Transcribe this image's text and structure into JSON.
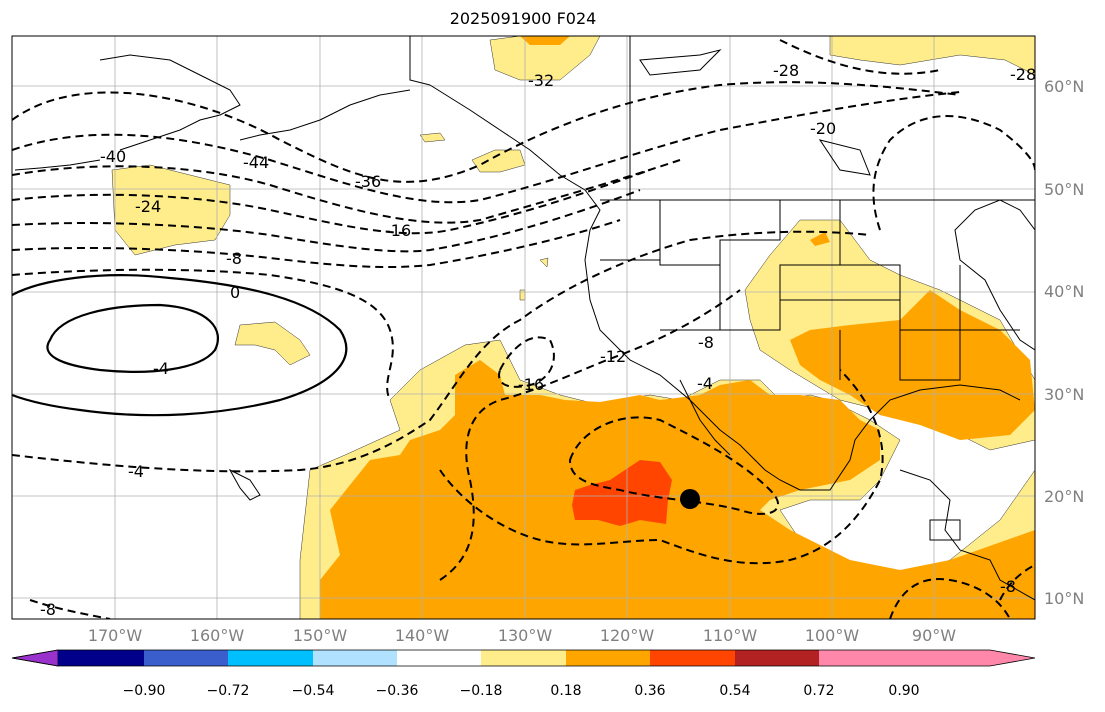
{
  "title": "2025091900 F024",
  "map": {
    "lat_labels": [
      "60°N",
      "50°N",
      "40°N",
      "30°N",
      "20°N",
      "10°N"
    ],
    "lon_labels": [
      "170°W",
      "160°W",
      "150°W",
      "140°W",
      "130°W",
      "120°W",
      "110°W",
      "100°W",
      "90°W"
    ],
    "contour_labels": [
      "-28",
      "-32",
      "-28",
      "-20",
      "-40",
      "-44",
      "-36",
      "-24",
      "-16",
      "-8",
      "0",
      "-4",
      "-16",
      "-12",
      "-8",
      "-4",
      "-4",
      "-8",
      "-8"
    ],
    "storm_marker": "tropical-cyclone-position",
    "colors": {
      "land_border": "#000000",
      "grid": "#b0b0b0",
      "contour": "#000000",
      "light": "#ffec8b",
      "medium": "#ffa500",
      "strong": "#ff4500"
    }
  },
  "colorbar": {
    "tick_labels": [
      "−0.90",
      "−0.72",
      "−0.54",
      "−0.36",
      "−0.18",
      "0.18",
      "0.36",
      "0.54",
      "0.72",
      "0.90"
    ],
    "colors": [
      "#9932cc",
      "#00008b",
      "#3a5fcd",
      "#00bfff",
      "#b0e2ff",
      "#ffffff",
      "#ffec8b",
      "#ffa500",
      "#ff4500",
      "#b22222",
      "#ff88aa"
    ]
  }
}
